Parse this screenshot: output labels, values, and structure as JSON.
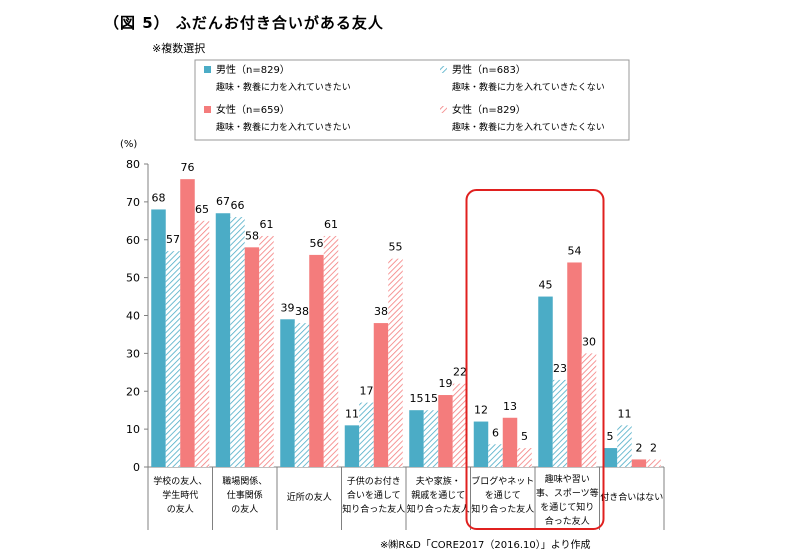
{
  "title": "（図 5） ふだんお付き合いがある友人",
  "subtitle": "※複数選択",
  "source": "※㈱R&D「CORE2017（2016.10）」より作成",
  "chart_data": {
    "type": "bar",
    "ylabel": "(%)",
    "ylim": [
      0,
      80
    ],
    "yticks": [
      0,
      10,
      20,
      30,
      40,
      50,
      60,
      70,
      80
    ],
    "grid": false,
    "legend_position": "top",
    "categories": [
      [
        "学校の友人、",
        "学生時代",
        "の友人"
      ],
      [
        "職場関係、",
        "仕事関係",
        "の友人"
      ],
      [
        "近所の友人"
      ],
      [
        "子供のお付き",
        "合いを通して",
        "知り合った友人"
      ],
      [
        "夫や家族・",
        "親戚を通じて",
        "知り合った友人"
      ],
      [
        "ブログやネット",
        "を通じて",
        "知り合った友人"
      ],
      [
        "趣味や習い",
        "事、スポーツ等",
        "を通じて知り",
        "合った友人"
      ],
      [
        "付き合いはない"
      ]
    ],
    "series": [
      {
        "name": "男性（n=829）",
        "sub": "趣味・教養に力を入れていきたい",
        "color": "#4bacc6",
        "pattern": "solid",
        "values": [
          68,
          67,
          39,
          11,
          15,
          12,
          45,
          5
        ]
      },
      {
        "name": "男性（n=683）",
        "sub": "趣味・教養に力を入れていきたくない",
        "color": "#4bacc6",
        "pattern": "hatch",
        "values": [
          57,
          66,
          38,
          17,
          15,
          6,
          23,
          11
        ]
      },
      {
        "name": "女性（n=659）",
        "sub": "趣味・教養に力を入れていきたい",
        "color": "#f47c7c",
        "pattern": "solid",
        "values": [
          76,
          58,
          56,
          38,
          19,
          13,
          54,
          2
        ]
      },
      {
        "name": "女性（n=829）",
        "sub": "趣味・教養に力を入れていきたくない",
        "color": "#f47c7c",
        "pattern": "hatch",
        "values": [
          65,
          61,
          61,
          55,
          22,
          5,
          30,
          2
        ]
      }
    ],
    "highlight_categories": [
      5,
      6
    ],
    "highlight_color": "#e0201f"
  }
}
